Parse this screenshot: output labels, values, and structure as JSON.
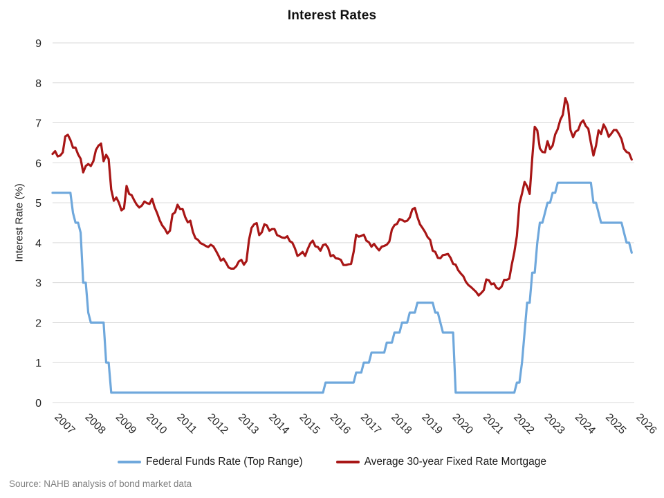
{
  "source_note": "Source: NAHB analysis of bond market data",
  "chart_data": {
    "type": "line",
    "title": "Interest Rates",
    "xlabel": "",
    "ylabel": "Interest Rate (%)",
    "ylim": [
      0,
      9
    ],
    "y_ticks": [
      0,
      1,
      2,
      3,
      4,
      5,
      6,
      7,
      8,
      9
    ],
    "grid": "horizontal",
    "grid_color": "#D9D9D9",
    "text_color": "#262626",
    "legend_position": "bottom",
    "x_frequency": "monthly",
    "x_start_year": 2007,
    "x_end_year": 2026,
    "x_tick_labels": [
      "2007",
      "2008",
      "2009",
      "2010",
      "2011",
      "2012",
      "2013",
      "2014",
      "2015",
      "2016",
      "2017",
      "2018",
      "2019",
      "2020",
      "2021",
      "2022",
      "2023",
      "2024",
      "2025",
      "2026"
    ],
    "series": [
      {
        "name": "Federal Funds Rate (Top Range)",
        "color": "#6FA8DC",
        "values": [
          5.25,
          5.25,
          5.25,
          5.25,
          5.25,
          5.25,
          5.25,
          5.25,
          4.75,
          4.5,
          4.5,
          4.25,
          3.0,
          3.0,
          2.25,
          2.0,
          2.0,
          2.0,
          2.0,
          2.0,
          2.0,
          1.0,
          1.0,
          0.25,
          0.25,
          0.25,
          0.25,
          0.25,
          0.25,
          0.25,
          0.25,
          0.25,
          0.25,
          0.25,
          0.25,
          0.25,
          0.25,
          0.25,
          0.25,
          0.25,
          0.25,
          0.25,
          0.25,
          0.25,
          0.25,
          0.25,
          0.25,
          0.25,
          0.25,
          0.25,
          0.25,
          0.25,
          0.25,
          0.25,
          0.25,
          0.25,
          0.25,
          0.25,
          0.25,
          0.25,
          0.25,
          0.25,
          0.25,
          0.25,
          0.25,
          0.25,
          0.25,
          0.25,
          0.25,
          0.25,
          0.25,
          0.25,
          0.25,
          0.25,
          0.25,
          0.25,
          0.25,
          0.25,
          0.25,
          0.25,
          0.25,
          0.25,
          0.25,
          0.25,
          0.25,
          0.25,
          0.25,
          0.25,
          0.25,
          0.25,
          0.25,
          0.25,
          0.25,
          0.25,
          0.25,
          0.25,
          0.25,
          0.25,
          0.25,
          0.25,
          0.25,
          0.25,
          0.25,
          0.25,
          0.25,
          0.25,
          0.25,
          0.5,
          0.5,
          0.5,
          0.5,
          0.5,
          0.5,
          0.5,
          0.5,
          0.5,
          0.5,
          0.5,
          0.5,
          0.75,
          0.75,
          0.75,
          1.0,
          1.0,
          1.0,
          1.25,
          1.25,
          1.25,
          1.25,
          1.25,
          1.25,
          1.5,
          1.5,
          1.5,
          1.75,
          1.75,
          1.75,
          2.0,
          2.0,
          2.0,
          2.25,
          2.25,
          2.25,
          2.5,
          2.5,
          2.5,
          2.5,
          2.5,
          2.5,
          2.5,
          2.25,
          2.25,
          2.0,
          1.75,
          1.75,
          1.75,
          1.75,
          1.75,
          0.25,
          0.25,
          0.25,
          0.25,
          0.25,
          0.25,
          0.25,
          0.25,
          0.25,
          0.25,
          0.25,
          0.25,
          0.25,
          0.25,
          0.25,
          0.25,
          0.25,
          0.25,
          0.25,
          0.25,
          0.25,
          0.25,
          0.25,
          0.25,
          0.5,
          0.5,
          1.0,
          1.75,
          2.5,
          2.5,
          3.25,
          3.25,
          4.0,
          4.5,
          4.5,
          4.75,
          5.0,
          5.0,
          5.25,
          5.25,
          5.5,
          5.5,
          5.5,
          5.5,
          5.5,
          5.5,
          5.5,
          5.5,
          5.5,
          5.5,
          5.5,
          5.5,
          5.5,
          5.5,
          5.0,
          5.0,
          4.75,
          4.5,
          4.5,
          4.5,
          4.5,
          4.5,
          4.5,
          4.5,
          4.5,
          4.5,
          4.25,
          4.0,
          4.0,
          3.75
        ]
      },
      {
        "name": "Average 30-year Fixed Rate Mortgage",
        "color": "#A81616",
        "values": [
          6.22,
          6.29,
          6.16,
          6.18,
          6.26,
          6.66,
          6.7,
          6.57,
          6.38,
          6.38,
          6.21,
          6.1,
          5.76,
          5.92,
          5.97,
          5.92,
          6.04,
          6.32,
          6.43,
          6.48,
          6.04,
          6.2,
          6.09,
          5.33,
          5.05,
          5.13,
          5.0,
          4.81,
          4.86,
          5.42,
          5.22,
          5.19,
          5.06,
          4.95,
          4.88,
          4.93,
          5.03,
          4.99,
          4.97,
          5.1,
          4.89,
          4.74,
          4.56,
          4.43,
          4.35,
          4.23,
          4.3,
          4.71,
          4.76,
          4.95,
          4.84,
          4.84,
          4.64,
          4.51,
          4.55,
          4.27,
          4.11,
          4.07,
          3.99,
          3.96,
          3.92,
          3.89,
          3.95,
          3.91,
          3.8,
          3.68,
          3.55,
          3.6,
          3.5,
          3.38,
          3.35,
          3.35,
          3.41,
          3.53,
          3.57,
          3.45,
          3.54,
          4.07,
          4.37,
          4.46,
          4.49,
          4.19,
          4.26,
          4.46,
          4.43,
          4.3,
          4.34,
          4.34,
          4.19,
          4.16,
          4.13,
          4.12,
          4.16,
          4.04,
          4.0,
          3.86,
          3.67,
          3.71,
          3.77,
          3.67,
          3.84,
          3.98,
          4.05,
          3.91,
          3.89,
          3.8,
          3.94,
          3.96,
          3.87,
          3.66,
          3.69,
          3.61,
          3.6,
          3.57,
          3.44,
          3.44,
          3.46,
          3.47,
          3.77,
          4.2,
          4.15,
          4.17,
          4.2,
          4.05,
          4.01,
          3.9,
          3.97,
          3.88,
          3.81,
          3.9,
          3.92,
          3.95,
          4.03,
          4.33,
          4.44,
          4.47,
          4.59,
          4.57,
          4.53,
          4.55,
          4.63,
          4.83,
          4.87,
          4.64,
          4.46,
          4.37,
          4.27,
          4.14,
          4.07,
          3.8,
          3.77,
          3.62,
          3.61,
          3.69,
          3.7,
          3.72,
          3.62,
          3.47,
          3.45,
          3.31,
          3.23,
          3.16,
          3.02,
          2.94,
          2.89,
          2.83,
          2.77,
          2.68,
          2.74,
          2.81,
          3.08,
          3.06,
          2.96,
          2.98,
          2.87,
          2.84,
          2.9,
          3.07,
          3.07,
          3.1,
          3.45,
          3.76,
          4.17,
          4.98,
          5.23,
          5.52,
          5.41,
          5.22,
          6.11,
          6.9,
          6.81,
          6.36,
          6.27,
          6.26,
          6.54,
          6.34,
          6.43,
          6.71,
          6.84,
          7.07,
          7.2,
          7.62,
          7.44,
          6.82,
          6.64,
          6.78,
          6.82,
          6.99,
          7.06,
          6.92,
          6.85,
          6.5,
          6.18,
          6.43,
          6.81,
          6.72,
          6.96,
          6.84,
          6.65,
          6.73,
          6.82,
          6.82,
          6.72,
          6.59,
          6.35,
          6.27,
          6.24,
          6.08
        ]
      }
    ]
  }
}
